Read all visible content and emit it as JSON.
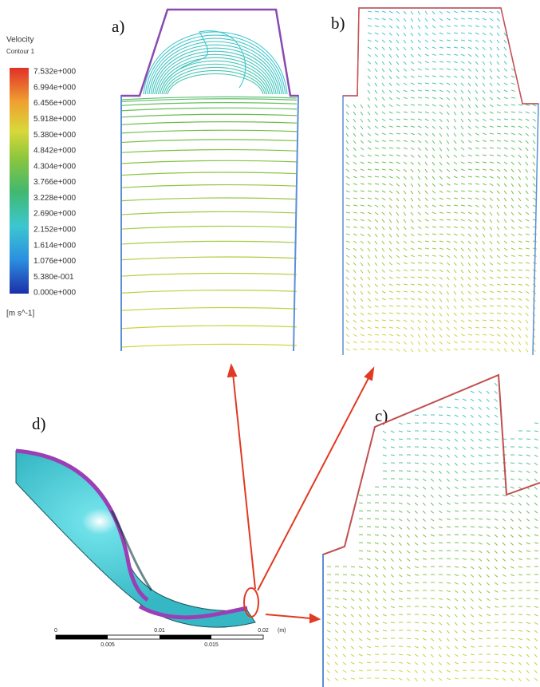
{
  "legend": {
    "title": "Velocity",
    "subtitle": "Contour 1",
    "labels": [
      "7.532e+000",
      "6.994e+000",
      "6.456e+000",
      "5.918e+000",
      "5.380e+000",
      "4.842e+000",
      "4.304e+000",
      "3.766e+000",
      "3.228e+000",
      "2.690e+000",
      "2.152e+000",
      "1.614e+000",
      "1.076e+000",
      "5.380e-001",
      "0.000e+000"
    ],
    "unit": "[m s^-1]"
  },
  "panels": {
    "a": "a)",
    "b": "b)",
    "c": "c)",
    "d": "d)"
  },
  "scale_bar": {
    "labels": [
      "0",
      "0.005",
      "0.01",
      "0.015",
      "0.02"
    ],
    "unit": "(m)"
  }
}
